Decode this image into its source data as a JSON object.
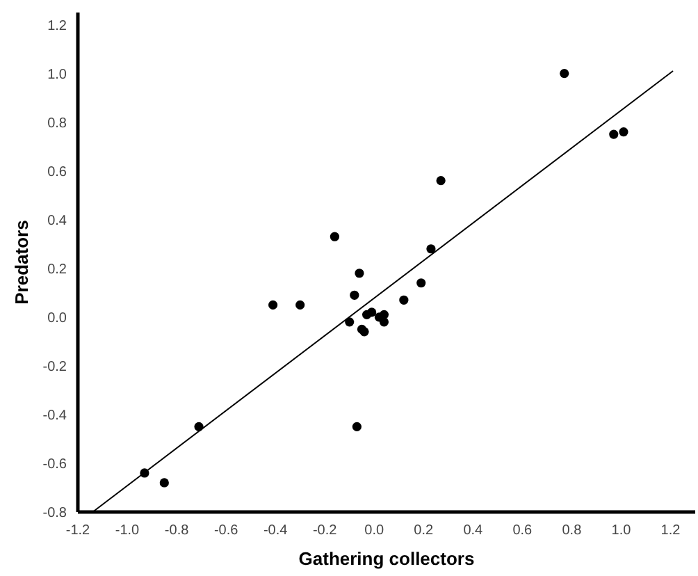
{
  "chart_data": {
    "type": "scatter",
    "xlabel": "Gathering collectors",
    "ylabel": "Predators",
    "xlim": [
      -1.2,
      1.3
    ],
    "ylim": [
      -0.8,
      1.25
    ],
    "xticks": [
      -1.2,
      {
        "value": -1,
        "label": "-1.0"
      },
      -0.8,
      -0.6,
      -0.4,
      -0.2,
      {
        "value": 0,
        "label": "0.0"
      },
      0.2,
      0.4,
      0.6,
      0.8,
      {
        "value": 1,
        "label": "1.0"
      },
      1.2
    ],
    "yticks": [
      -0.8,
      -0.6,
      -0.4,
      -0.2,
      {
        "value": 0,
        "label": "0.0"
      },
      0.2,
      0.4,
      0.6,
      0.8,
      {
        "value": 1,
        "label": "1.0"
      },
      1.2
    ],
    "grid": false,
    "marker": "circle",
    "series": [
      {
        "color": "#000000",
        "x": [
          -0.93,
          -0.85,
          -0.71,
          -0.41,
          -0.3,
          -0.16,
          0.77,
          0.97,
          1.01,
          0.27,
          0.23,
          0.19,
          0.12,
          -0.06,
          -0.08,
          -0.1,
          -0.03,
          -0.01,
          0.02,
          0.04,
          0.04,
          -0.05,
          -0.04,
          -0.07
        ],
        "values": [
          -0.64,
          -0.68,
          -0.45,
          0.05,
          0.05,
          0.33,
          1.0,
          0.75,
          0.76,
          0.56,
          0.28,
          0.14,
          0.07,
          0.18,
          0.09,
          -0.02,
          0.01,
          0.02,
          0.0,
          0.01,
          -0.02,
          -0.05,
          -0.06,
          -0.45
        ]
      },
      {
        "type": "line",
        "color": "#000000",
        "marker": "none",
        "x": [
          -1.14,
          1.21
        ],
        "values": [
          -0.8,
          1.01
        ]
      }
    ]
  }
}
